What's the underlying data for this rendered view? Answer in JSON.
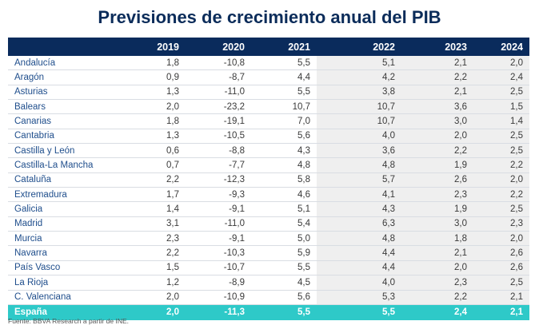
{
  "title": "Previsiones de crecimiento anual del PIB",
  "columns": [
    "",
    "2019",
    "2020",
    "2021",
    "2022",
    "2023",
    "2024"
  ],
  "rows": [
    {
      "region": "Andalucía",
      "values": [
        "1,8",
        "-10,8",
        "5,5",
        "5,1",
        "2,1",
        "2,0"
      ]
    },
    {
      "region": "Aragón",
      "values": [
        "0,9",
        "-8,7",
        "4,4",
        "4,2",
        "2,2",
        "2,4"
      ]
    },
    {
      "region": "Asturias",
      "values": [
        "1,3",
        "-11,0",
        "5,5",
        "3,8",
        "2,1",
        "2,5"
      ]
    },
    {
      "region": "Balears",
      "values": [
        "2,0",
        "-23,2",
        "10,7",
        "10,7",
        "3,6",
        "1,5"
      ]
    },
    {
      "region": "Canarias",
      "values": [
        "1,8",
        "-19,1",
        "7,0",
        "10,7",
        "3,0",
        "1,4"
      ]
    },
    {
      "region": "Cantabria",
      "values": [
        "1,3",
        "-10,5",
        "5,6",
        "4,0",
        "2,0",
        "2,5"
      ]
    },
    {
      "region": "Castilla y León",
      "values": [
        "0,6",
        "-8,8",
        "4,3",
        "3,6",
        "2,2",
        "2,5"
      ]
    },
    {
      "region": "Castilla-La Mancha",
      "values": [
        "0,7",
        "-7,7",
        "4,8",
        "4,8",
        "1,9",
        "2,2"
      ]
    },
    {
      "region": "Cataluña",
      "values": [
        "2,2",
        "-12,3",
        "5,8",
        "5,7",
        "2,6",
        "2,0"
      ]
    },
    {
      "region": "Extremadura",
      "values": [
        "1,7",
        "-9,3",
        "4,6",
        "4,1",
        "2,3",
        "2,2"
      ]
    },
    {
      "region": "Galicia",
      "values": [
        "1,4",
        "-9,1",
        "5,1",
        "4,3",
        "1,9",
        "2,5"
      ]
    },
    {
      "region": "Madrid",
      "values": [
        "3,1",
        "-11,0",
        "5,4",
        "6,3",
        "3,0",
        "2,3"
      ]
    },
    {
      "region": "Murcia",
      "values": [
        "2,3",
        "-9,1",
        "5,0",
        "4,8",
        "1,8",
        "2,0"
      ]
    },
    {
      "region": "Navarra",
      "values": [
        "2,2",
        "-10,3",
        "5,9",
        "4,4",
        "2,1",
        "2,6"
      ]
    },
    {
      "region": "País Vasco",
      "values": [
        "1,5",
        "-10,7",
        "5,5",
        "4,4",
        "2,0",
        "2,6"
      ]
    },
    {
      "region": "La Rioja",
      "values": [
        "1,2",
        "-8,9",
        "4,5",
        "4,0",
        "2,3",
        "2,5"
      ]
    },
    {
      "region": "C. Valenciana",
      "values": [
        "2,0",
        "-10,9",
        "5,6",
        "5,3",
        "2,2",
        "2,1"
      ]
    }
  ],
  "total": {
    "region": "España",
    "values": [
      "2,0",
      "-11,3",
      "5,5",
      "5,5",
      "2,4",
      "2,1"
    ]
  },
  "source": "Fuente: BBVA Research a partir de INE."
}
